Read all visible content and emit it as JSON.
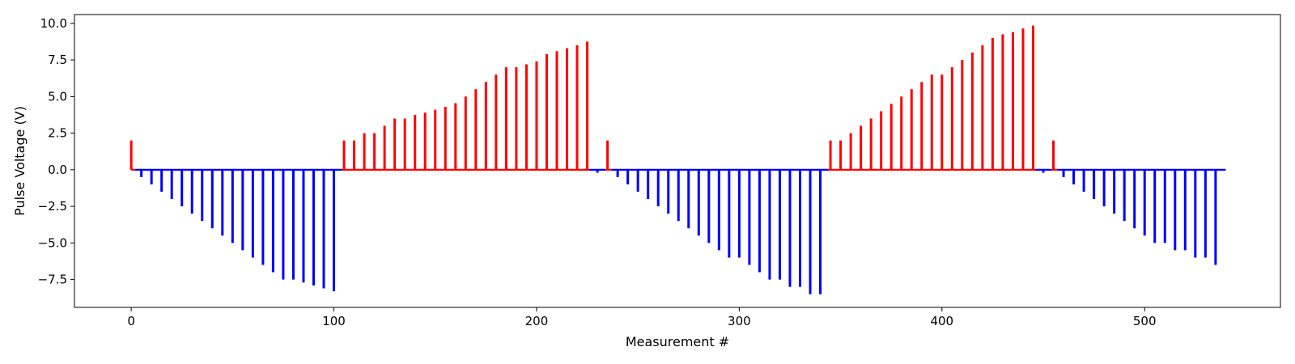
{
  "chart_data": {
    "type": "bar",
    "subtype": "stem pulse plot",
    "title": "",
    "xlabel": "Measurement #",
    "ylabel": "Pulse Voltage (V)",
    "xlim": [
      -28,
      567
    ],
    "ylim": [
      -9.4,
      10.6
    ],
    "x_ticks": [
      0,
      100,
      200,
      300,
      400,
      500
    ],
    "y_ticks": [
      -7.5,
      -5.0,
      -2.5,
      0.0,
      2.5,
      5.0,
      7.5,
      10.0
    ],
    "x_tick_labels": [
      "0",
      "100",
      "200",
      "300",
      "400",
      "500"
    ],
    "y_tick_labels": [
      "−7.5",
      "−5.0",
      "−2.5",
      "0.0",
      "2.5",
      "5.0",
      "7.5",
      "10.0"
    ],
    "grid": false,
    "colors": {
      "positive": "#ff0000",
      "negative": "#0000ff"
    },
    "baseline_segments": [
      {
        "x0": 0,
        "x1": 2,
        "color": "#ff0000"
      },
      {
        "x0": 2,
        "x1": 104,
        "color": "#0000ff"
      },
      {
        "x0": 104,
        "x1": 226,
        "color": "#ff0000"
      },
      {
        "x0": 226,
        "x1": 234,
        "color": "#0000ff"
      },
      {
        "x0": 234,
        "x1": 237,
        "color": "#ff0000"
      },
      {
        "x0": 237,
        "x1": 344,
        "color": "#0000ff"
      },
      {
        "x0": 344,
        "x1": 446,
        "color": "#ff0000"
      },
      {
        "x0": 446,
        "x1": 454,
        "color": "#0000ff"
      },
      {
        "x0": 454,
        "x1": 457,
        "color": "#ff0000"
      },
      {
        "x0": 457,
        "x1": 540,
        "color": "#0000ff"
      }
    ],
    "pulses": [
      {
        "x": 0,
        "y": 2.0
      },
      {
        "x": 5,
        "y": -0.5
      },
      {
        "x": 10,
        "y": -1.0
      },
      {
        "x": 15,
        "y": -1.5
      },
      {
        "x": 20,
        "y": -2.0
      },
      {
        "x": 25,
        "y": -2.5
      },
      {
        "x": 30,
        "y": -3.0
      },
      {
        "x": 35,
        "y": -3.5
      },
      {
        "x": 40,
        "y": -4.0
      },
      {
        "x": 45,
        "y": -4.5
      },
      {
        "x": 50,
        "y": -5.0
      },
      {
        "x": 55,
        "y": -5.5
      },
      {
        "x": 60,
        "y": -6.0
      },
      {
        "x": 65,
        "y": -6.5
      },
      {
        "x": 70,
        "y": -7.0
      },
      {
        "x": 75,
        "y": -7.5
      },
      {
        "x": 80,
        "y": -7.5
      },
      {
        "x": 85,
        "y": -7.7
      },
      {
        "x": 90,
        "y": -7.9
      },
      {
        "x": 95,
        "y": -8.1
      },
      {
        "x": 100,
        "y": -8.3
      },
      {
        "x": 105,
        "y": 2.0
      },
      {
        "x": 110,
        "y": 2.0
      },
      {
        "x": 115,
        "y": 2.5
      },
      {
        "x": 120,
        "y": 2.5
      },
      {
        "x": 125,
        "y": 3.0
      },
      {
        "x": 130,
        "y": 3.5
      },
      {
        "x": 135,
        "y": 3.5
      },
      {
        "x": 140,
        "y": 3.75
      },
      {
        "x": 145,
        "y": 3.9
      },
      {
        "x": 150,
        "y": 4.1
      },
      {
        "x": 155,
        "y": 4.3
      },
      {
        "x": 160,
        "y": 4.55
      },
      {
        "x": 165,
        "y": 5.0
      },
      {
        "x": 170,
        "y": 5.5
      },
      {
        "x": 175,
        "y": 6.0
      },
      {
        "x": 180,
        "y": 6.5
      },
      {
        "x": 185,
        "y": 7.0
      },
      {
        "x": 190,
        "y": 7.0
      },
      {
        "x": 195,
        "y": 7.2
      },
      {
        "x": 200,
        "y": 7.4
      },
      {
        "x": 205,
        "y": 7.9
      },
      {
        "x": 210,
        "y": 8.1
      },
      {
        "x": 215,
        "y": 8.3
      },
      {
        "x": 220,
        "y": 8.5
      },
      {
        "x": 225,
        "y": 8.75
      },
      {
        "x": 230,
        "y": -0.2
      },
      {
        "x": 235,
        "y": 2.0
      },
      {
        "x": 240,
        "y": -0.5
      },
      {
        "x": 245,
        "y": -1.0
      },
      {
        "x": 250,
        "y": -1.5
      },
      {
        "x": 255,
        "y": -2.0
      },
      {
        "x": 260,
        "y": -2.5
      },
      {
        "x": 265,
        "y": -3.0
      },
      {
        "x": 270,
        "y": -3.5
      },
      {
        "x": 275,
        "y": -4.0
      },
      {
        "x": 280,
        "y": -4.5
      },
      {
        "x": 285,
        "y": -5.0
      },
      {
        "x": 290,
        "y": -5.5
      },
      {
        "x": 295,
        "y": -6.0
      },
      {
        "x": 300,
        "y": -6.0
      },
      {
        "x": 305,
        "y": -6.5
      },
      {
        "x": 310,
        "y": -7.0
      },
      {
        "x": 315,
        "y": -7.5
      },
      {
        "x": 320,
        "y": -7.5
      },
      {
        "x": 325,
        "y": -8.0
      },
      {
        "x": 330,
        "y": -8.0
      },
      {
        "x": 335,
        "y": -8.5
      },
      {
        "x": 340,
        "y": -8.5
      },
      {
        "x": 345,
        "y": 2.0
      },
      {
        "x": 350,
        "y": 2.0
      },
      {
        "x": 355,
        "y": 2.5
      },
      {
        "x": 360,
        "y": 3.0
      },
      {
        "x": 365,
        "y": 3.5
      },
      {
        "x": 370,
        "y": 4.0
      },
      {
        "x": 375,
        "y": 4.5
      },
      {
        "x": 380,
        "y": 5.0
      },
      {
        "x": 385,
        "y": 5.5
      },
      {
        "x": 390,
        "y": 6.0
      },
      {
        "x": 395,
        "y": 6.5
      },
      {
        "x": 400,
        "y": 6.5
      },
      {
        "x": 405,
        "y": 7.0
      },
      {
        "x": 410,
        "y": 7.5
      },
      {
        "x": 415,
        "y": 8.0
      },
      {
        "x": 420,
        "y": 8.5
      },
      {
        "x": 425,
        "y": 9.0
      },
      {
        "x": 430,
        "y": 9.25
      },
      {
        "x": 435,
        "y": 9.4
      },
      {
        "x": 440,
        "y": 9.65
      },
      {
        "x": 445,
        "y": 9.85
      },
      {
        "x": 450,
        "y": -0.2
      },
      {
        "x": 455,
        "y": 2.0
      },
      {
        "x": 460,
        "y": -0.5
      },
      {
        "x": 465,
        "y": -1.0
      },
      {
        "x": 470,
        "y": -1.5
      },
      {
        "x": 475,
        "y": -2.0
      },
      {
        "x": 480,
        "y": -2.5
      },
      {
        "x": 485,
        "y": -3.0
      },
      {
        "x": 490,
        "y": -3.5
      },
      {
        "x": 495,
        "y": -4.0
      },
      {
        "x": 500,
        "y": -4.5
      },
      {
        "x": 505,
        "y": -5.0
      },
      {
        "x": 510,
        "y": -5.0
      },
      {
        "x": 515,
        "y": -5.5
      },
      {
        "x": 520,
        "y": -5.5
      },
      {
        "x": 525,
        "y": -6.0
      },
      {
        "x": 530,
        "y": -6.0
      },
      {
        "x": 535,
        "y": -6.5
      }
    ]
  }
}
